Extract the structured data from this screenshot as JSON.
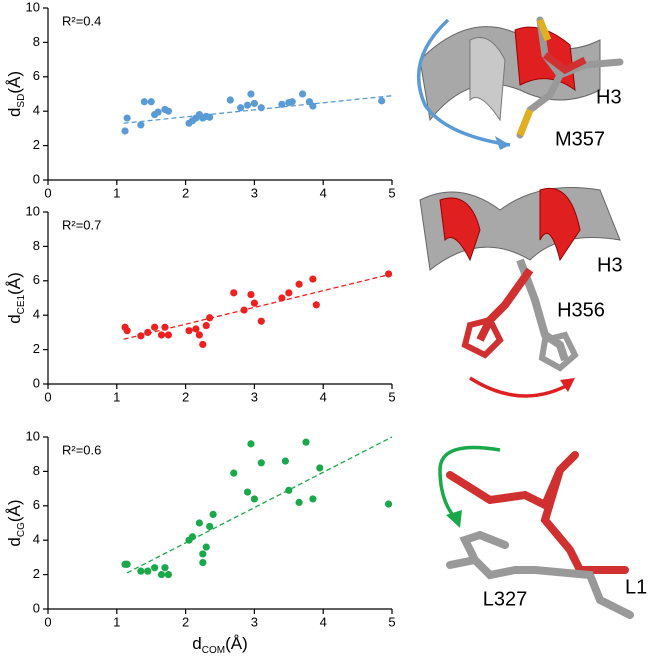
{
  "chart_data": [
    {
      "type": "scatter",
      "annotation": "R²=0.4",
      "ylabel": [
        "d",
        "SD",
        "(Å)"
      ],
      "color": "#5b9bd5",
      "x": [
        1.12,
        1.15,
        1.35,
        1.4,
        1.5,
        1.55,
        1.6,
        1.7,
        1.75,
        2.05,
        2.1,
        2.15,
        2.2,
        2.25,
        2.3,
        2.35,
        2.65,
        2.8,
        2.9,
        2.95,
        3.0,
        3.1,
        3.4,
        3.5,
        3.55,
        3.7,
        3.8,
        3.85,
        4.85
      ],
      "y": [
        2.85,
        3.6,
        3.2,
        4.55,
        4.55,
        3.8,
        3.95,
        4.1,
        4.0,
        3.3,
        3.45,
        3.6,
        3.8,
        3.6,
        3.7,
        3.65,
        4.65,
        4.2,
        4.35,
        5.0,
        4.45,
        4.2,
        4.4,
        4.5,
        4.55,
        5.0,
        4.55,
        4.3,
        4.6
      ],
      "trendline": {
        "x": [
          1.1,
          5
        ],
        "y": [
          3.3,
          4.9
        ]
      },
      "xlim": [
        0,
        5
      ],
      "xticks": [
        0,
        1,
        2,
        3,
        4,
        5
      ],
      "ylim": [
        0,
        10
      ],
      "yticks": [
        0,
        2,
        4,
        6,
        8,
        10
      ]
    },
    {
      "type": "scatter",
      "annotation": "R²=0.7",
      "ylabel": [
        "d",
        "CE1",
        "(Å)"
      ],
      "color": "#ee2020",
      "x": [
        1.12,
        1.15,
        1.35,
        1.45,
        1.55,
        1.65,
        1.7,
        1.75,
        2.05,
        2.15,
        2.2,
        2.25,
        2.3,
        2.35,
        2.7,
        2.85,
        2.95,
        3.0,
        3.1,
        3.4,
        3.5,
        3.65,
        3.85,
        3.9,
        4.95
      ],
      "y": [
        3.3,
        3.1,
        2.8,
        3.0,
        3.3,
        2.85,
        3.3,
        2.85,
        3.1,
        3.2,
        2.85,
        2.3,
        3.4,
        3.85,
        5.3,
        4.3,
        5.2,
        4.7,
        3.65,
        5.0,
        5.3,
        5.8,
        6.1,
        4.6,
        6.4
      ],
      "trendline": {
        "x": [
          1.1,
          5
        ],
        "y": [
          2.6,
          6.4
        ]
      },
      "xlim": [
        0,
        5
      ],
      "xticks": [
        0,
        1,
        2,
        3,
        4,
        5
      ],
      "ylim": [
        0,
        10
      ],
      "yticks": [
        0,
        2,
        4,
        6,
        8,
        10
      ]
    },
    {
      "type": "scatter",
      "annotation": "R²=0.6",
      "ylabel": [
        "d",
        "CG",
        "(Å)"
      ],
      "xlabel": [
        "d",
        "COM",
        "(Å)"
      ],
      "color": "#1aa84a",
      "x": [
        1.12,
        1.15,
        1.35,
        1.45,
        1.55,
        1.65,
        1.7,
        1.75,
        2.05,
        2.1,
        2.2,
        2.25,
        2.25,
        2.3,
        2.35,
        2.4,
        2.7,
        2.9,
        2.95,
        3.0,
        3.1,
        3.45,
        3.5,
        3.65,
        3.75,
        3.85,
        3.95,
        4.95
      ],
      "y": [
        2.6,
        2.6,
        2.2,
        2.2,
        2.4,
        2.0,
        2.4,
        2.0,
        4.0,
        4.2,
        5.0,
        2.7,
        3.2,
        3.6,
        4.8,
        5.5,
        7.9,
        6.8,
        9.6,
        6.4,
        8.5,
        8.6,
        6.9,
        6.2,
        9.7,
        6.4,
        8.2,
        6.1
      ],
      "trendline": {
        "x": [
          1.15,
          5
        ],
        "y": [
          2.1,
          10
        ]
      },
      "xlim": [
        0,
        5
      ],
      "xticks": [
        0,
        1,
        2,
        3,
        4,
        5
      ],
      "ylim": [
        0,
        10
      ],
      "yticks": [
        0,
        2,
        4,
        6,
        8,
        10
      ]
    }
  ],
  "structure_labels": [
    "H3",
    "M357",
    "H3",
    "H356",
    "L1",
    "L327"
  ]
}
